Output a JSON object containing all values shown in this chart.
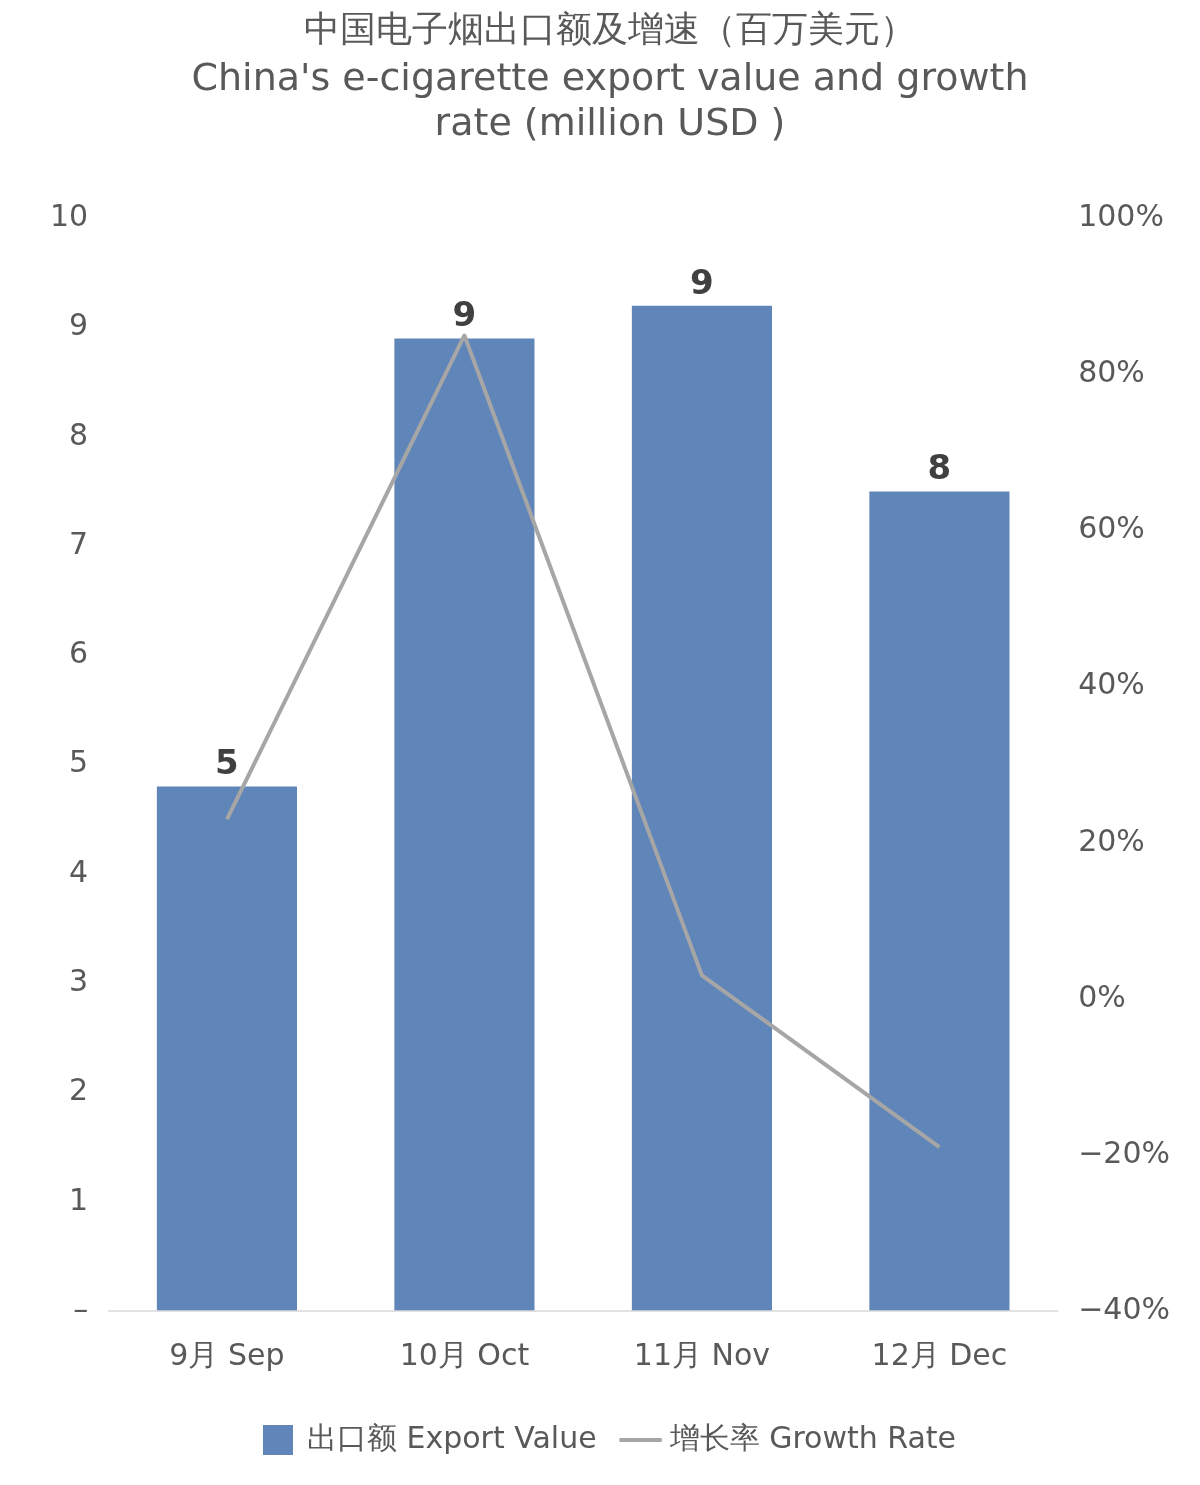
{
  "chart_data": {
    "type": "bar",
    "title": "中国电子烟出口额及增速（百万美元）",
    "subtitle": "China's e-cigarette export value and growth rate (million USD )",
    "categories": [
      "9月 Sep",
      "10月 Oct",
      "11月 Nov",
      "12月 Dec"
    ],
    "series": [
      {
        "name": "出口额 Export Value",
        "color": "#6085b8",
        "values": [
          4.8,
          8.9,
          9.2,
          7.5
        ],
        "value_labels": [
          "5",
          "9",
          "9",
          "8"
        ]
      },
      {
        "name": "增长率 Growth Rate",
        "type": "line",
        "axis": "y2",
        "color": "#a6a6a6",
        "values": [
          23,
          85,
          3,
          -19
        ]
      }
    ],
    "ylim": [
      0,
      10
    ],
    "yticks": [
      {
        "value": 0,
        "label": "–"
      },
      1,
      2,
      3,
      4,
      5,
      6,
      7,
      8,
      9,
      10
    ],
    "y2lim": [
      -40,
      100
    ],
    "y2ticks": [
      {
        "value": -40,
        "label": "−40%"
      },
      {
        "value": -20,
        "label": "−20%"
      },
      {
        "value": 0,
        "label": "0%"
      },
      {
        "value": 20,
        "label": "20%"
      },
      {
        "value": 40,
        "label": "40%"
      },
      {
        "value": 60,
        "label": "60%"
      },
      {
        "value": 80,
        "label": "80%"
      },
      {
        "value": 100,
        "label": "100%"
      }
    ],
    "grid": false,
    "legend": "bottom",
    "marker": "none",
    "line_style": "solid"
  }
}
